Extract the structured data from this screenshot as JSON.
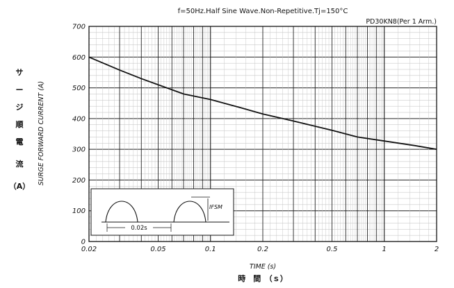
{
  "chart_data": {
    "type": "line",
    "title": "f=50Hz.Half Sine Wave.Non-Repetitive.Tj=150°C",
    "subtitle": "PD30KN8(Per 1 Arm.)",
    "xlabel": "TIME (s)",
    "xlabel_jp": "時　間　（ｓ）",
    "ylabel": "SURGE FORWARD CURRENT (A)",
    "ylabel_jp": [
      "サ",
      "ー",
      "ジ",
      "順",
      "電",
      "流",
      "（A）"
    ],
    "x_scale": "log",
    "xlim": [
      0.02,
      2
    ],
    "ylim": [
      0,
      700
    ],
    "x_ticks": [
      0.02,
      0.05,
      0.1,
      0.2,
      0.5,
      1,
      2
    ],
    "x_tick_labels": [
      "0.02",
      "0.05",
      "0.1",
      "0.2",
      "0.5",
      "1",
      "2"
    ],
    "y_ticks": [
      0,
      100,
      200,
      300,
      400,
      500,
      600,
      700
    ],
    "y_tick_labels": [
      "0",
      "100",
      "200",
      "300",
      "400",
      "500",
      "600",
      "700"
    ],
    "grid": true,
    "series": [
      {
        "x": [
          0.02,
          0.03,
          0.04,
          0.05,
          0.07,
          0.1,
          0.15,
          0.2,
          0.3,
          0.5,
          0.7,
          1,
          1.5,
          2
        ],
        "y": [
          600,
          558,
          530,
          510,
          480,
          462,
          435,
          415,
          392,
          362,
          340,
          327,
          312,
          300
        ]
      }
    ],
    "inset": {
      "period_label": "0.02s",
      "peak_label": "IFSM"
    }
  }
}
